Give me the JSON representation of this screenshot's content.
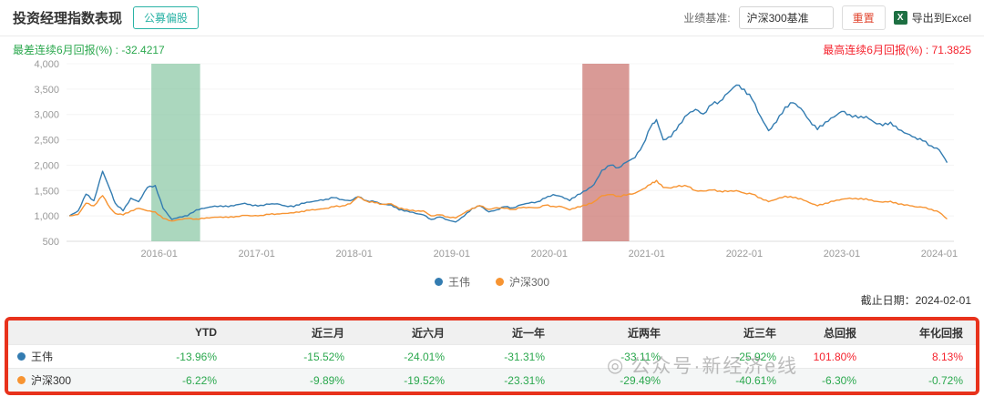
{
  "header": {
    "title": "投资经理指数表现",
    "category_button": "公募偏股",
    "benchmark_label": "业绩基准:",
    "benchmark_value": "沪深300基准",
    "reset_button": "重置",
    "export_label": "导出到Excel",
    "excel_icon_glyph": "X"
  },
  "stats": {
    "worst": {
      "label": "最差连续6月回报(%) : ",
      "value": "-32.4217",
      "color": "#2ba84e"
    },
    "best": {
      "label": "最高连续6月回报(%) : ",
      "value": "71.3825",
      "color": "#f5222d"
    }
  },
  "footer": {
    "cutoff_date": "截止日期：2024-02-01"
  },
  "watermark": {
    "icon": "◎",
    "text": "公众号·新经济e线"
  },
  "colors": {
    "series_blue": "#337cb1",
    "series_orange": "#f79432",
    "positive": "#f5222d",
    "negative": "#2ba84e",
    "annotation_outline": "#e8321c",
    "teal_accent": "#2bb3a6"
  },
  "chart_data": {
    "type": "line",
    "title": "",
    "xlabel": "",
    "ylabel": "",
    "ylim": [
      500,
      4000
    ],
    "ytick_step": 500,
    "xlim": [
      2015.05,
      2024.15
    ],
    "grid": true,
    "legend_position": "bottom",
    "xticks": [
      {
        "t": 2016,
        "label": "2016-01"
      },
      {
        "t": 2017,
        "label": "2017-01"
      },
      {
        "t": 2018,
        "label": "2018-01"
      },
      {
        "t": 2019,
        "label": "2019-01"
      },
      {
        "t": 2020,
        "label": "2020-01"
      },
      {
        "t": 2021,
        "label": "2021-01"
      },
      {
        "t": 2022,
        "label": "2022-01"
      },
      {
        "t": 2023,
        "label": "2023-01"
      },
      {
        "t": 2024,
        "label": "2024-01"
      }
    ],
    "bands": [
      {
        "name": "worst-6m-band",
        "from": 2015.92,
        "to": 2016.42,
        "color": "#8fc9a8",
        "opacity": 0.75
      },
      {
        "name": "best-6m-band",
        "from": 2020.34,
        "to": 2020.82,
        "color": "#c96f6a",
        "opacity": 0.7
      }
    ],
    "series": [
      {
        "name": "王伟",
        "color": "#337cb1",
        "points": [
          [
            2015.08,
            1000
          ],
          [
            2015.17,
            1100
          ],
          [
            2015.25,
            1430
          ],
          [
            2015.33,
            1300
          ],
          [
            2015.42,
            1880
          ],
          [
            2015.5,
            1500
          ],
          [
            2015.55,
            1250
          ],
          [
            2015.63,
            1100
          ],
          [
            2015.71,
            1350
          ],
          [
            2015.79,
            1280
          ],
          [
            2015.88,
            1560
          ],
          [
            2015.96,
            1600
          ],
          [
            2016.04,
            1150
          ],
          [
            2016.13,
            930
          ],
          [
            2016.21,
            980
          ],
          [
            2016.29,
            1000
          ],
          [
            2016.38,
            1120
          ],
          [
            2016.46,
            1150
          ],
          [
            2016.54,
            1180
          ],
          [
            2016.63,
            1200
          ],
          [
            2016.71,
            1180
          ],
          [
            2016.79,
            1220
          ],
          [
            2016.88,
            1250
          ],
          [
            2016.96,
            1200
          ],
          [
            2017.04,
            1210
          ],
          [
            2017.13,
            1230
          ],
          [
            2017.21,
            1240
          ],
          [
            2017.29,
            1200
          ],
          [
            2017.38,
            1180
          ],
          [
            2017.46,
            1250
          ],
          [
            2017.54,
            1270
          ],
          [
            2017.63,
            1300
          ],
          [
            2017.71,
            1330
          ],
          [
            2017.79,
            1360
          ],
          [
            2017.88,
            1320
          ],
          [
            2017.96,
            1300
          ],
          [
            2018.04,
            1380
          ],
          [
            2018.13,
            1300
          ],
          [
            2018.21,
            1280
          ],
          [
            2018.29,
            1230
          ],
          [
            2018.38,
            1220
          ],
          [
            2018.46,
            1120
          ],
          [
            2018.54,
            1100
          ],
          [
            2018.63,
            1050
          ],
          [
            2018.71,
            1020
          ],
          [
            2018.79,
            930
          ],
          [
            2018.88,
            980
          ],
          [
            2018.96,
            920
          ],
          [
            2019.04,
            880
          ],
          [
            2019.13,
            1000
          ],
          [
            2019.21,
            1150
          ],
          [
            2019.29,
            1200
          ],
          [
            2019.38,
            1080
          ],
          [
            2019.46,
            1120
          ],
          [
            2019.54,
            1180
          ],
          [
            2019.63,
            1160
          ],
          [
            2019.71,
            1220
          ],
          [
            2019.79,
            1250
          ],
          [
            2019.88,
            1280
          ],
          [
            2019.96,
            1350
          ],
          [
            2020.04,
            1420
          ],
          [
            2020.13,
            1380
          ],
          [
            2020.21,
            1300
          ],
          [
            2020.29,
            1420
          ],
          [
            2020.38,
            1500
          ],
          [
            2020.46,
            1620
          ],
          [
            2020.54,
            1900
          ],
          [
            2020.63,
            2000
          ],
          [
            2020.71,
            1950
          ],
          [
            2020.79,
            2060
          ],
          [
            2020.88,
            2150
          ],
          [
            2020.96,
            2400
          ],
          [
            2021.04,
            2750
          ],
          [
            2021.1,
            2900
          ],
          [
            2021.17,
            2500
          ],
          [
            2021.25,
            2560
          ],
          [
            2021.33,
            2800
          ],
          [
            2021.42,
            3000
          ],
          [
            2021.5,
            3100
          ],
          [
            2021.58,
            3010
          ],
          [
            2021.67,
            3200
          ],
          [
            2021.75,
            3260
          ],
          [
            2021.83,
            3420
          ],
          [
            2021.92,
            3580
          ],
          [
            2022.0,
            3500
          ],
          [
            2022.08,
            3300
          ],
          [
            2022.17,
            2950
          ],
          [
            2022.25,
            2680
          ],
          [
            2022.33,
            2850
          ],
          [
            2022.42,
            3150
          ],
          [
            2022.5,
            3230
          ],
          [
            2022.58,
            3120
          ],
          [
            2022.67,
            2880
          ],
          [
            2022.75,
            2700
          ],
          [
            2022.83,
            2850
          ],
          [
            2022.92,
            2950
          ],
          [
            2023.0,
            3060
          ],
          [
            2023.08,
            3000
          ],
          [
            2023.17,
            2930
          ],
          [
            2023.25,
            2960
          ],
          [
            2023.33,
            2850
          ],
          [
            2023.42,
            2780
          ],
          [
            2023.5,
            2850
          ],
          [
            2023.58,
            2700
          ],
          [
            2023.67,
            2620
          ],
          [
            2023.75,
            2550
          ],
          [
            2023.83,
            2480
          ],
          [
            2023.92,
            2380
          ],
          [
            2024.0,
            2300
          ],
          [
            2024.08,
            2050
          ]
        ]
      },
      {
        "name": "沪深300",
        "color": "#f79432",
        "points": [
          [
            2015.08,
            1000
          ],
          [
            2015.17,
            1030
          ],
          [
            2015.25,
            1250
          ],
          [
            2015.33,
            1200
          ],
          [
            2015.42,
            1400
          ],
          [
            2015.5,
            1150
          ],
          [
            2015.55,
            1050
          ],
          [
            2015.63,
            1020
          ],
          [
            2015.71,
            1100
          ],
          [
            2015.79,
            1150
          ],
          [
            2015.88,
            1100
          ],
          [
            2015.96,
            1080
          ],
          [
            2016.04,
            950
          ],
          [
            2016.13,
            900
          ],
          [
            2016.21,
            930
          ],
          [
            2016.29,
            950
          ],
          [
            2016.38,
            940
          ],
          [
            2016.46,
            950
          ],
          [
            2016.54,
            970
          ],
          [
            2016.63,
            980
          ],
          [
            2016.71,
            970
          ],
          [
            2016.79,
            990
          ],
          [
            2016.88,
            1010
          ],
          [
            2016.96,
            1000
          ],
          [
            2017.04,
            1010
          ],
          [
            2017.13,
            1030
          ],
          [
            2017.21,
            1040
          ],
          [
            2017.29,
            1050
          ],
          [
            2017.38,
            1060
          ],
          [
            2017.46,
            1090
          ],
          [
            2017.54,
            1110
          ],
          [
            2017.63,
            1130
          ],
          [
            2017.71,
            1150
          ],
          [
            2017.79,
            1180
          ],
          [
            2017.88,
            1200
          ],
          [
            2017.96,
            1240
          ],
          [
            2018.04,
            1380
          ],
          [
            2018.13,
            1290
          ],
          [
            2018.21,
            1260
          ],
          [
            2018.29,
            1230
          ],
          [
            2018.38,
            1240
          ],
          [
            2018.46,
            1150
          ],
          [
            2018.54,
            1130
          ],
          [
            2018.63,
            1090
          ],
          [
            2018.71,
            1100
          ],
          [
            2018.79,
            1000
          ],
          [
            2018.88,
            1020
          ],
          [
            2018.96,
            980
          ],
          [
            2019.04,
            960
          ],
          [
            2019.13,
            1060
          ],
          [
            2019.21,
            1150
          ],
          [
            2019.29,
            1200
          ],
          [
            2019.38,
            1130
          ],
          [
            2019.46,
            1160
          ],
          [
            2019.54,
            1150
          ],
          [
            2019.63,
            1130
          ],
          [
            2019.71,
            1160
          ],
          [
            2019.79,
            1170
          ],
          [
            2019.88,
            1160
          ],
          [
            2019.96,
            1210
          ],
          [
            2020.04,
            1190
          ],
          [
            2020.13,
            1180
          ],
          [
            2020.21,
            1120
          ],
          [
            2020.29,
            1180
          ],
          [
            2020.38,
            1210
          ],
          [
            2020.46,
            1280
          ],
          [
            2020.54,
            1400
          ],
          [
            2020.63,
            1420
          ],
          [
            2020.71,
            1390
          ],
          [
            2020.79,
            1410
          ],
          [
            2020.88,
            1450
          ],
          [
            2020.96,
            1530
          ],
          [
            2021.04,
            1620
          ],
          [
            2021.1,
            1700
          ],
          [
            2021.17,
            1560
          ],
          [
            2021.25,
            1550
          ],
          [
            2021.33,
            1600
          ],
          [
            2021.42,
            1580
          ],
          [
            2021.5,
            1500
          ],
          [
            2021.58,
            1490
          ],
          [
            2021.67,
            1510
          ],
          [
            2021.75,
            1490
          ],
          [
            2021.83,
            1480
          ],
          [
            2021.92,
            1500
          ],
          [
            2022.0,
            1450
          ],
          [
            2022.08,
            1430
          ],
          [
            2022.17,
            1350
          ],
          [
            2022.25,
            1280
          ],
          [
            2022.33,
            1330
          ],
          [
            2022.42,
            1390
          ],
          [
            2022.5,
            1360
          ],
          [
            2022.58,
            1340
          ],
          [
            2022.67,
            1260
          ],
          [
            2022.75,
            1200
          ],
          [
            2022.83,
            1250
          ],
          [
            2022.92,
            1290
          ],
          [
            2023.0,
            1330
          ],
          [
            2023.08,
            1350
          ],
          [
            2023.17,
            1330
          ],
          [
            2023.25,
            1340
          ],
          [
            2023.33,
            1290
          ],
          [
            2023.42,
            1270
          ],
          [
            2023.5,
            1290
          ],
          [
            2023.58,
            1230
          ],
          [
            2023.67,
            1220
          ],
          [
            2023.75,
            1180
          ],
          [
            2023.83,
            1170
          ],
          [
            2023.92,
            1130
          ],
          [
            2024.0,
            1070
          ],
          [
            2024.08,
            940
          ]
        ]
      }
    ]
  },
  "table": {
    "columns": [
      "",
      "YTD",
      "近三月",
      "近六月",
      "近一年",
      "近两年",
      "近三年",
      "总回报",
      "年化回报"
    ],
    "rows": [
      {
        "name": "王伟",
        "dot_color": "#337cb1",
        "values": [
          "-13.96%",
          "-15.52%",
          "-24.01%",
          "-31.31%",
          "-33.11%",
          "-25.92%",
          "101.80%",
          "8.13%"
        ]
      },
      {
        "name": "沪深300",
        "dot_color": "#f79432",
        "values": [
          "-6.22%",
          "-9.89%",
          "-19.52%",
          "-23.31%",
          "-29.49%",
          "-40.61%",
          "-6.30%",
          "-0.72%"
        ]
      }
    ]
  }
}
